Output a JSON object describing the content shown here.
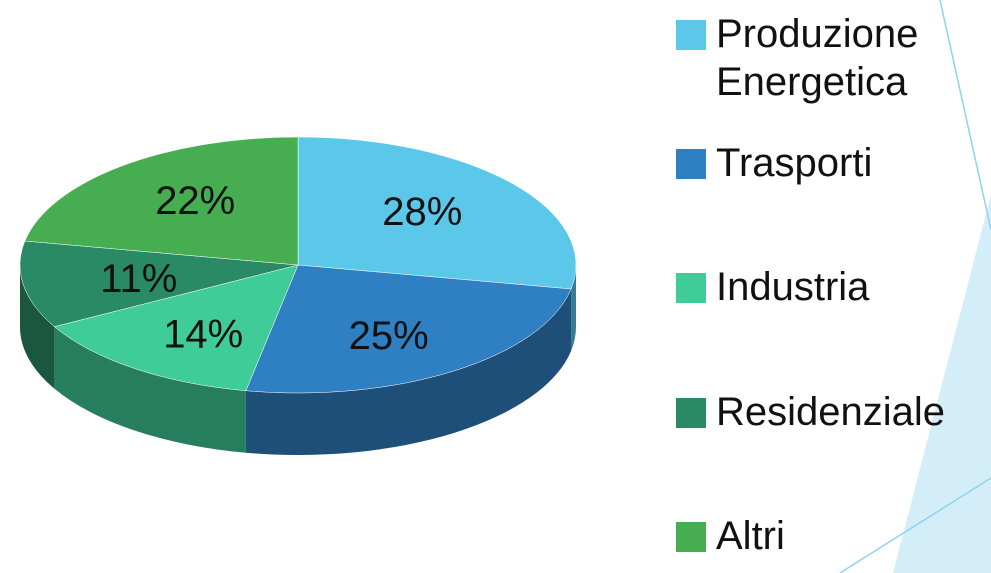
{
  "chart_data": {
    "type": "pie",
    "title": "",
    "slices": [
      {
        "label": "Produzione Energetica",
        "value": 28,
        "value_label": "28%",
        "color": "#5bc8ea"
      },
      {
        "label": "Trasporti",
        "value": 25,
        "value_label": "25%",
        "color": "#2e80c2"
      },
      {
        "label": "Industria",
        "value": 14,
        "value_label": "14%",
        "color": "#3fcc98"
      },
      {
        "label": "Residenziale",
        "value": 11,
        "value_label": "11%",
        "color": "#2b8a66"
      },
      {
        "label": "Altri",
        "value": 22,
        "value_label": "22%",
        "color": "#46ae50"
      }
    ],
    "start_angle": "12 o'clock",
    "direction": "clockwise",
    "style": "3d-tilted",
    "legend_position": "right"
  }
}
